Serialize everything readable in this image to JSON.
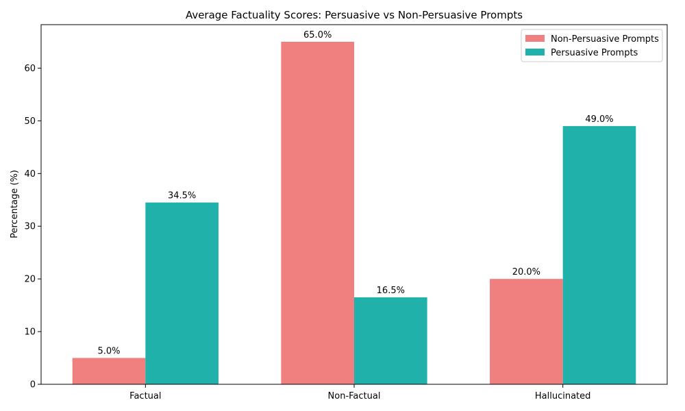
{
  "chart_data": {
    "type": "bar",
    "title": "Average Factuality Scores: Persuasive vs Non-Persuasive Prompts",
    "xlabel": "",
    "ylabel": "Percentage (%)",
    "categories": [
      "Factual",
      "Non-Factual",
      "Hallucinated"
    ],
    "series": [
      {
        "name": "Non-Persuasive Prompts",
        "color": "#f08080",
        "values": [
          5.0,
          65.0,
          20.0
        ],
        "labels": [
          "5.0%",
          "65.0%",
          "20.0%"
        ]
      },
      {
        "name": "Persuasive Prompts",
        "color": "#20b2aa",
        "values": [
          34.5,
          16.5,
          49.0
        ],
        "labels": [
          "34.5%",
          "16.5%",
          "49.0%"
        ]
      }
    ],
    "ylim": [
      0,
      68.25
    ],
    "yticks": [
      "0",
      "10",
      "20",
      "30",
      "40",
      "50",
      "60"
    ],
    "grid": false,
    "legend_position": "top-right"
  }
}
